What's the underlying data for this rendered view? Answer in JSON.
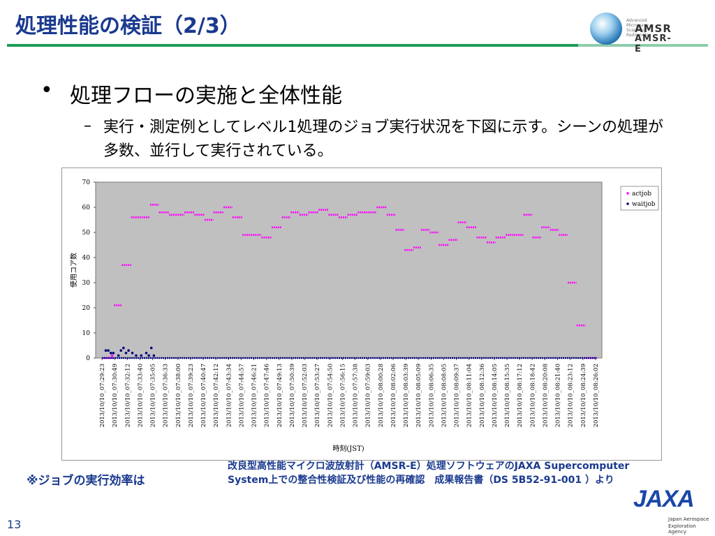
{
  "slide": {
    "title": "処理性能の検証（2/3）",
    "bullet_marker": "•",
    "bullet": "処理フローの実施と全体性能",
    "sub_marker": "–",
    "sub": "実行・測定例としてレベル1処理のジョブ実行状況を下図に示す。シーンの処理が多数、並行して実行されている。",
    "note_left": "※ジョブの実行効率は",
    "note_right_1": "改良型高性能マイクロ波放射計（AMSR-E）処理ソフトウェアのJAXA Supercomputer",
    "note_right_2": "System上での整合性検証及び性能の再確認　成果報告書（DS 5B52-91-001 ）より",
    "page_number": "13"
  },
  "logos": {
    "amsr_small": "Advanced Microwave Scanning Radiometer",
    "amsr_line1": "AMSR",
    "amsr_line2": "AMSR-E",
    "jaxa_word": "JAXA",
    "jaxa_sub1": "Japan Aerospace",
    "jaxa_sub2": "Exploration Agency"
  },
  "colors": {
    "title": "#1a3a8f",
    "rule": "#1c9c58",
    "plot_bg": "#c0c0c0",
    "actjob": "#ff00ff",
    "waitjob": "#000080"
  },
  "chart_data": {
    "type": "scatter",
    "xlabel": "時刻(JST)",
    "ylabel": "使用コア数",
    "ylim": [
      0,
      70
    ],
    "yticks": [
      "0",
      "10",
      "20",
      "30",
      "40",
      "50",
      "60",
      "70"
    ],
    "grid": false,
    "legend_position": "right",
    "xticks": [
      "2013/10/10_07:29:23",
      "2013/10/10_07:30:49",
      "2013/10/10_07:32:12",
      "2013/10/10_07:33:40",
      "2013/10/10_07:35:05",
      "2013/10/10_07:36:33",
      "2013/10/10_07:38:00",
      "2013/10/10_07:39:23",
      "2013/10/10_07:40:47",
      "2013/10/10_07:42:12",
      "2013/10/10_07:43:34",
      "2013/10/10_07:44:57",
      "2013/10/10_07:46:21",
      "2013/10/10_07:47:46",
      "2013/10/10_07:49:13",
      "2013/10/10_07:50:39",
      "2013/10/10_07:52:03",
      "2013/10/10_07:53:27",
      "2013/10/10_07:54:50",
      "2013/10/10_07:56:15",
      "2013/10/10_07:57:38",
      "2013/10/10_07:59:03",
      "2013/10/10_08:00:28",
      "2013/10/10_08:02:06",
      "2013/10/10_08:03:39",
      "2013/10/10_08:05:09",
      "2013/10/10_08:06:35",
      "2013/10/10_08:08:05",
      "2013/10/10_08:09:37",
      "2013/10/10_08:11:04",
      "2013/10/10_08:12:36",
      "2013/10/10_08:14:05",
      "2013/10/10_08:15:35",
      "2013/10/10_08:17:12",
      "2013/10/10_08:18:42",
      "2013/10/10_08:20:08",
      "2013/10/10_08:21:40",
      "2013/10/10_08:23:12",
      "2013/10/10_08:24:39",
      "2013/10/10_08:26:02"
    ],
    "series": [
      {
        "name": "actjob",
        "color": "#ff00ff",
        "segments": [
          {
            "x": [
              0.6,
              1.4
            ],
            "y": 0
          },
          {
            "x": 1.3,
            "y": 1
          },
          {
            "x": [
              1.45,
              2.05
            ],
            "y": 21
          },
          {
            "x": [
              2.05,
              2.8
            ],
            "y": 37
          },
          {
            "x": [
              2.8,
              4.3
            ],
            "y": 56
          },
          {
            "x": [
              4.3,
              5.0
            ],
            "y": 61
          },
          {
            "x": [
              5.0,
              5.8
            ],
            "y": 58
          },
          {
            "x": [
              5.8,
              7.0
            ],
            "y": 57
          },
          {
            "x": [
              7.0,
              7.8
            ],
            "y": 58
          },
          {
            "x": [
              7.8,
              8.6
            ],
            "y": 57
          },
          {
            "x": [
              8.6,
              9.3
            ],
            "y": 55
          },
          {
            "x": [
              9.3,
              10.1
            ],
            "y": 58
          },
          {
            "x": [
              10.1,
              10.8
            ],
            "y": 60
          },
          {
            "x": [
              10.8,
              11.6
            ],
            "y": 56
          },
          {
            "x": [
              11.6,
              13.1
            ],
            "y": 49
          },
          {
            "x": [
              13.1,
              13.9
            ],
            "y": 48
          },
          {
            "x": [
              13.9,
              14.7
            ],
            "y": 52
          },
          {
            "x": [
              14.7,
              15.4
            ],
            "y": 56
          },
          {
            "x": [
              15.4,
              16.1
            ],
            "y": 58
          },
          {
            "x": [
              16.1,
              16.8
            ],
            "y": 57
          },
          {
            "x": [
              16.8,
              17.6
            ],
            "y": 58
          },
          {
            "x": [
              17.6,
              18.4
            ],
            "y": 59
          },
          {
            "x": [
              18.4,
              19.2
            ],
            "y": 57
          },
          {
            "x": [
              19.2,
              19.9
            ],
            "y": 56
          },
          {
            "x": [
              19.9,
              20.7
            ],
            "y": 57
          },
          {
            "x": [
              20.7,
              22.2
            ],
            "y": 58
          },
          {
            "x": [
              22.2,
              23.0
            ],
            "y": 60
          },
          {
            "x": [
              23.0,
              23.7
            ],
            "y": 57
          },
          {
            "x": [
              23.7,
              24.4
            ],
            "y": 51
          },
          {
            "x": [
              24.4,
              25.1
            ],
            "y": 43
          },
          {
            "x": [
              25.1,
              25.7
            ],
            "y": 44
          },
          {
            "x": [
              25.7,
              26.4
            ],
            "y": 51
          },
          {
            "x": [
              26.4,
              27.1
            ],
            "y": 50
          },
          {
            "x": [
              27.1,
              27.9
            ],
            "y": 45
          },
          {
            "x": [
              27.9,
              28.6
            ],
            "y": 47
          },
          {
            "x": [
              28.6,
              29.3
            ],
            "y": 54
          },
          {
            "x": [
              29.3,
              30.1
            ],
            "y": 52
          },
          {
            "x": [
              30.1,
              30.9
            ],
            "y": 48
          },
          {
            "x": [
              30.9,
              31.6
            ],
            "y": 46
          },
          {
            "x": [
              31.6,
              32.4
            ],
            "y": 48
          },
          {
            "x": [
              32.4,
              33.8
            ],
            "y": 49
          },
          {
            "x": [
              33.8,
              34.5
            ],
            "y": 57
          },
          {
            "x": [
              34.5,
              35.2
            ],
            "y": 48
          },
          {
            "x": [
              35.2,
              35.9
            ],
            "y": 52
          },
          {
            "x": [
              35.9,
              36.6
            ],
            "y": 51
          },
          {
            "x": [
              36.6,
              37.3
            ],
            "y": 49
          },
          {
            "x": [
              37.3,
              38.0
            ],
            "y": 30
          },
          {
            "x": [
              38.0,
              38.7
            ],
            "y": 13
          },
          {
            "x": [
              38.7,
              39.6
            ],
            "y": 0
          }
        ]
      },
      {
        "name": "waitjob",
        "color": "#000080",
        "segments": [
          {
            "x": [
              0.5,
              39.6
            ],
            "y": 0
          },
          {
            "x": 0.8,
            "y": 3
          },
          {
            "x": 1.0,
            "y": 3
          },
          {
            "x": 1.2,
            "y": 2
          },
          {
            "x": 1.4,
            "y": 2
          },
          {
            "x": 1.8,
            "y": 1
          },
          {
            "x": 2.0,
            "y": 3
          },
          {
            "x": 2.2,
            "y": 4
          },
          {
            "x": 2.4,
            "y": 2
          },
          {
            "x": 2.6,
            "y": 3
          },
          {
            "x": 2.9,
            "y": 2
          },
          {
            "x": 3.2,
            "y": 1
          },
          {
            "x": 3.6,
            "y": 1
          },
          {
            "x": 4.0,
            "y": 2
          },
          {
            "x": 4.4,
            "y": 4
          },
          {
            "x": 4.2,
            "y": 1
          },
          {
            "x": 4.6,
            "y": 1
          }
        ]
      }
    ]
  }
}
